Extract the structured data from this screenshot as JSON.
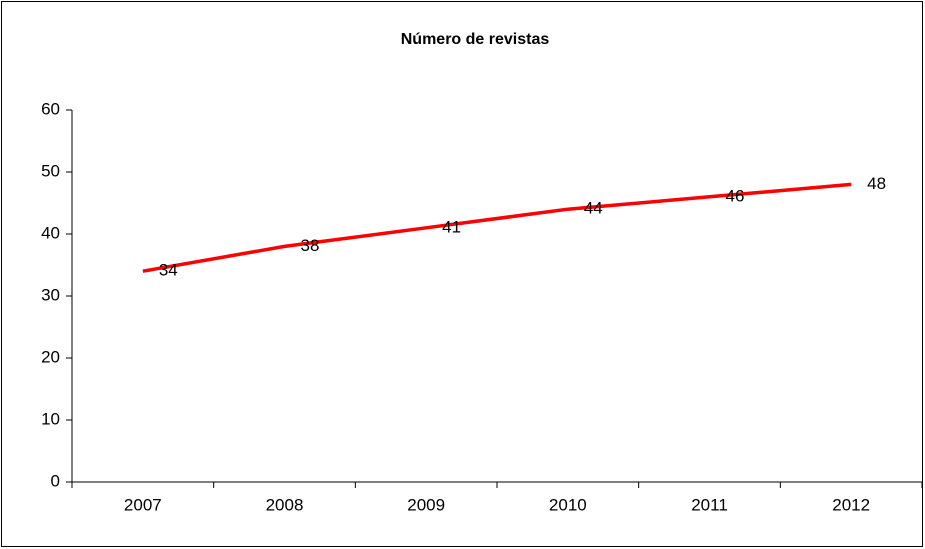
{
  "chart_data": {
    "type": "line",
    "title": "Número de revistas",
    "categories": [
      "2007",
      "2008",
      "2009",
      "2010",
      "2011",
      "2012"
    ],
    "series": [
      {
        "name": "Número de revistas",
        "color": "#ff0000",
        "values": [
          34,
          38,
          41,
          44,
          46,
          48
        ]
      }
    ],
    "ylim": [
      0,
      60
    ],
    "yticks": [
      0,
      10,
      20,
      30,
      40,
      50,
      60
    ],
    "grid": false
  }
}
